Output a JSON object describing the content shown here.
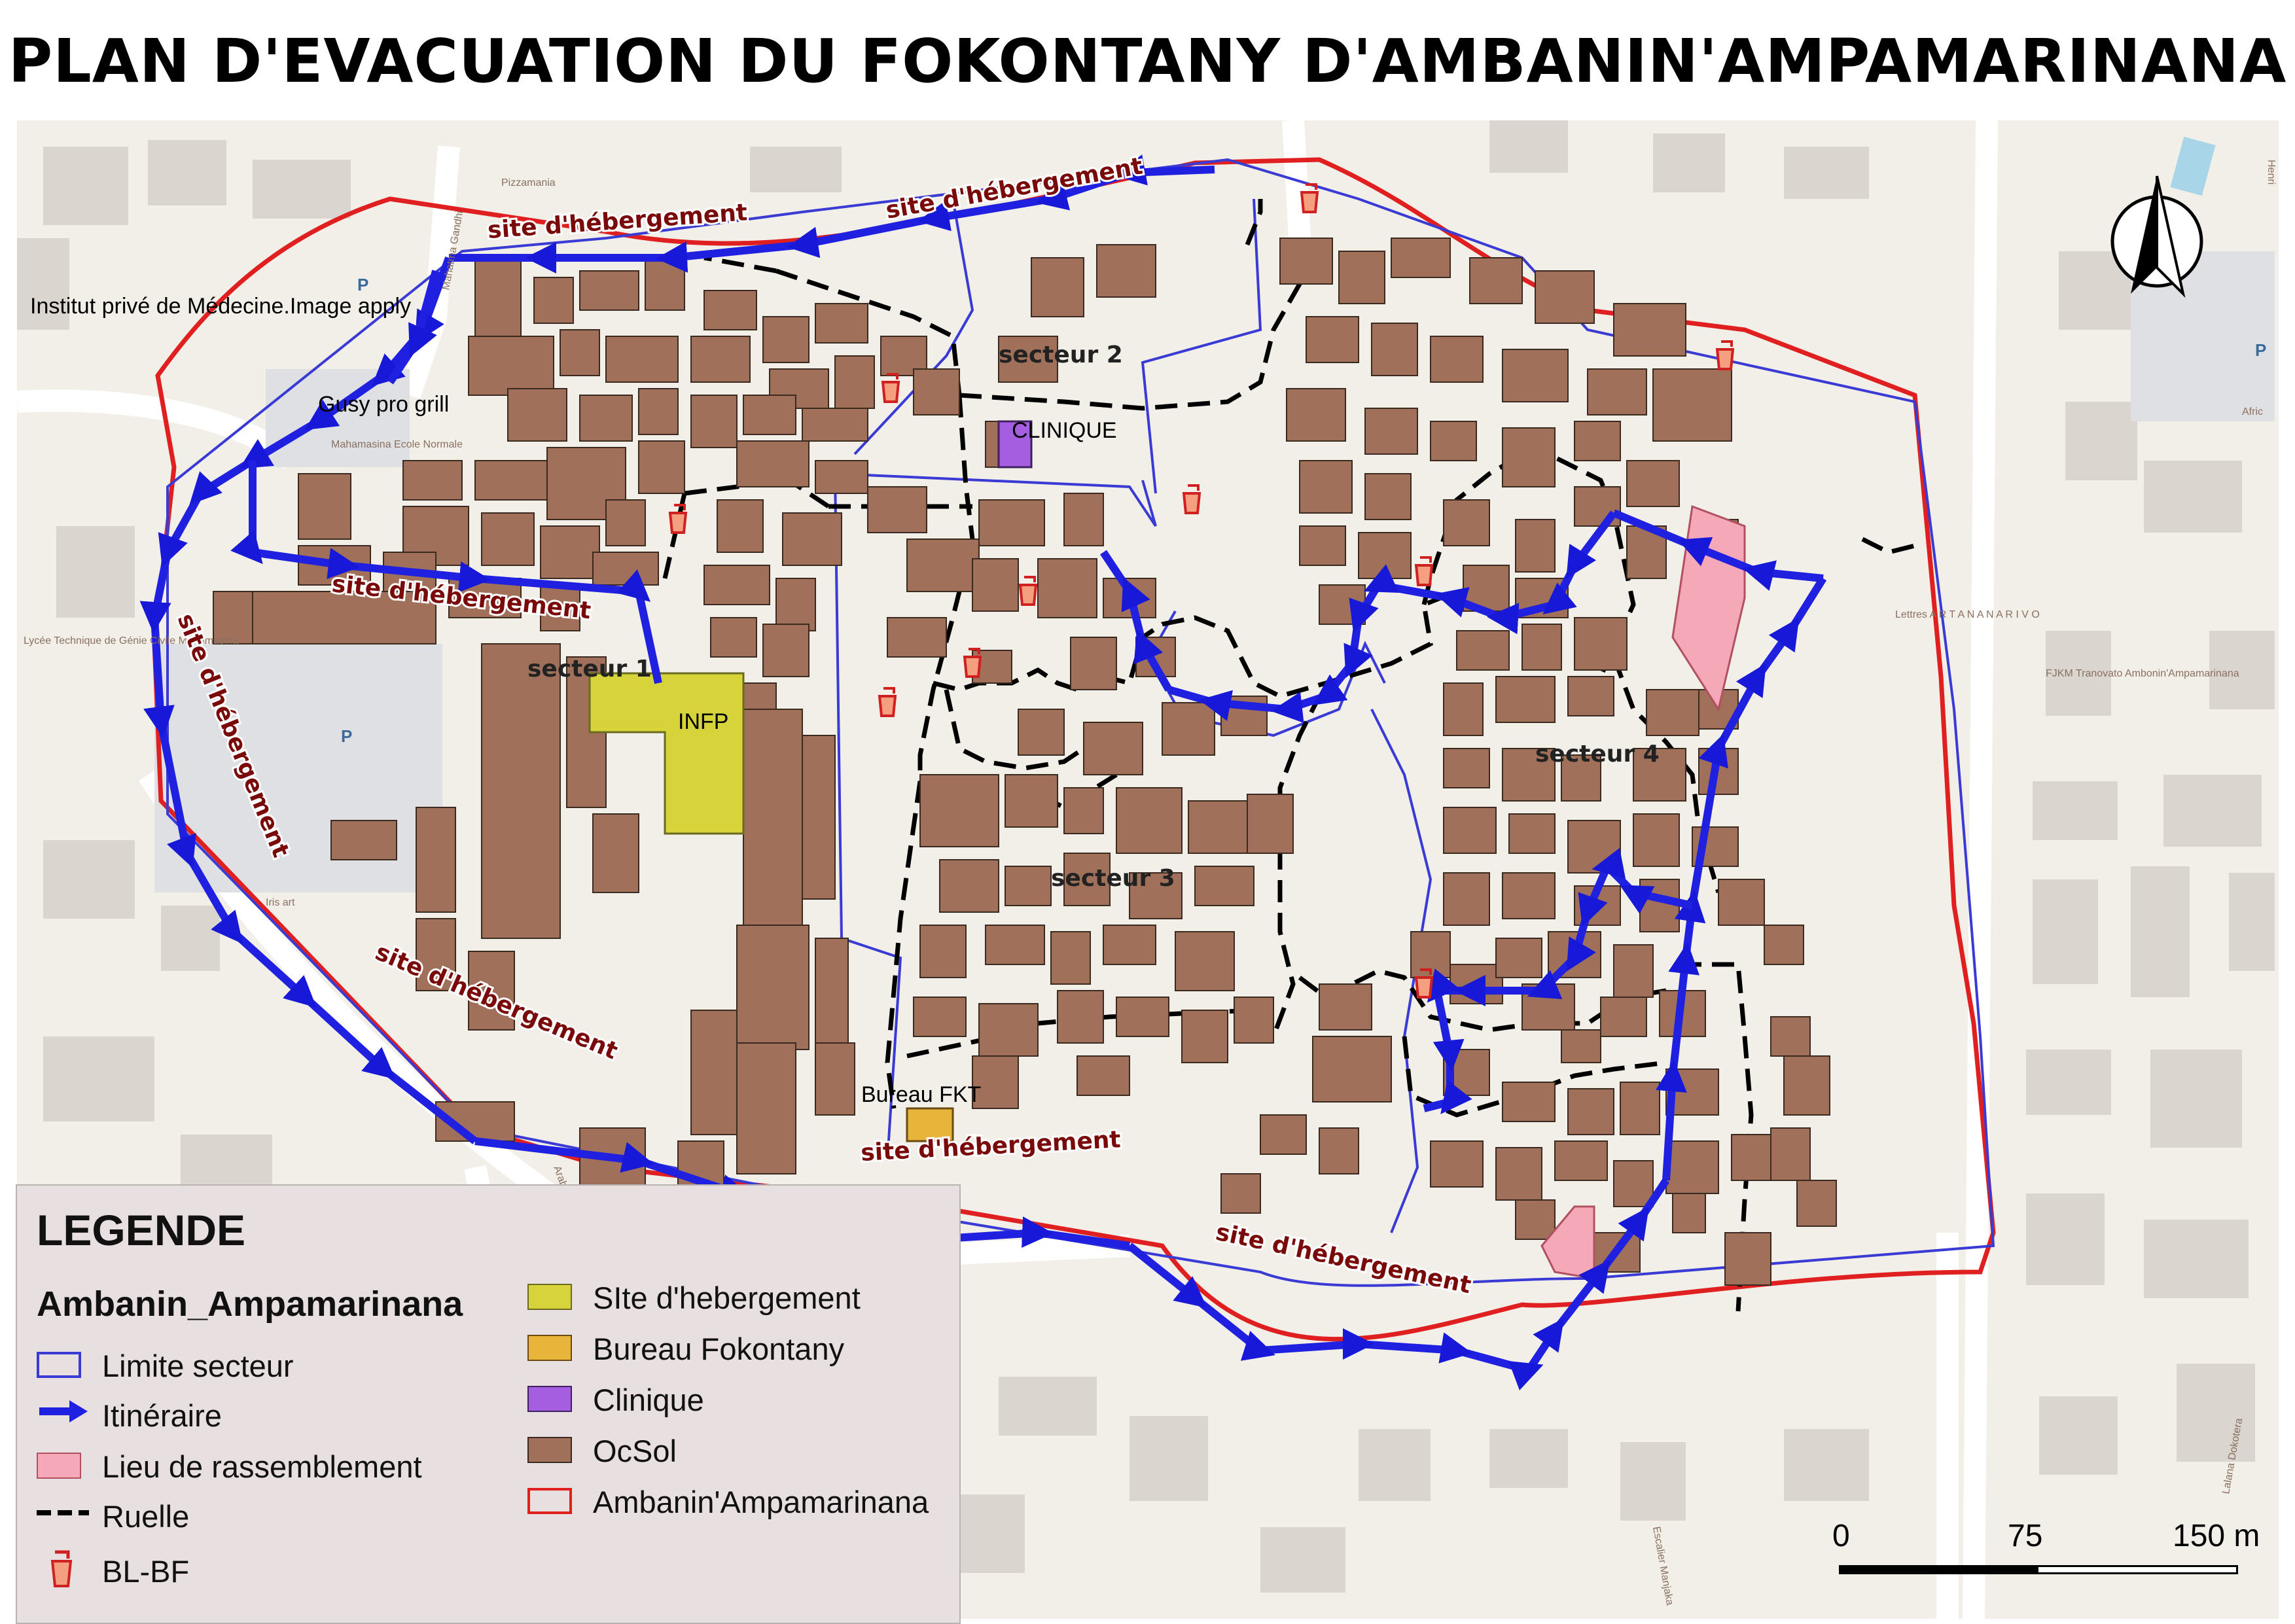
{
  "title": "PLAN D'EVACUATION DU FOKONTANY D'AMBANIN'AMPAMARINANA",
  "map": {
    "sector_labels": [
      "secteur 1",
      "secteur 2",
      "secteur 3",
      "secteur 4"
    ],
    "facility_labels": {
      "infp": "INFP",
      "clinique": "CLINIQUE",
      "bureau": "Bureau FKT"
    },
    "site_labels": [
      "site d'hébergement",
      "site d'hébergement",
      "site d'hébergement",
      "site d'hébergement",
      "site d'hébergement",
      "site d'hébergement",
      "site d'hébergement"
    ],
    "poi_labels": {
      "institut": "Institut privé de Médecine.Image apply",
      "gusy": "Gusy pro grill",
      "pizzamania": "Pizzamania",
      "mahamasina_ecole": "Mahamasina Ecole Normale",
      "lycee": "Lycée Technique de Génie Civile Mahamasina",
      "iris_art": "Iris art",
      "fjkm": "FJKM Tranovato Ambonin'Ampamarinana",
      "lettres": "Lettres A R T A N A N A R I V O",
      "avenue": "Arabe",
      "ruelle_text": "Escalier Manjaka",
      "lalana": "Lalana Dokotera",
      "africa": "Afric",
      "henri": "Henri",
      "gandhi": "Mahatma Gandhi",
      "parking": "P"
    }
  },
  "legend": {
    "title": "LEGENDE",
    "layer": "Ambanin_Ampamarinana",
    "items_left": [
      "Limite secteur",
      "Itinéraire",
      "Lieu de rassemblement",
      "Ruelle",
      "BL-BF"
    ],
    "items_right": [
      "SIte d'hebergement",
      "Bureau Fokontany",
      "Clinique",
      "OcSol",
      "Ambanin'Ampamarinana"
    ]
  },
  "scale": {
    "labels": [
      "0",
      "75",
      "150 m"
    ]
  },
  "colors": {
    "boundary": "#e02020",
    "sector": "#3a3ad4",
    "route": "#2020e0",
    "gathering": "#f4a8b8",
    "shelter": "#d6d43a",
    "bureau": "#e8b53a",
    "clinic": "#a55ee0",
    "building": "#a0705a",
    "ruelle": "#000000",
    "site_label": "#7a0a0a"
  }
}
